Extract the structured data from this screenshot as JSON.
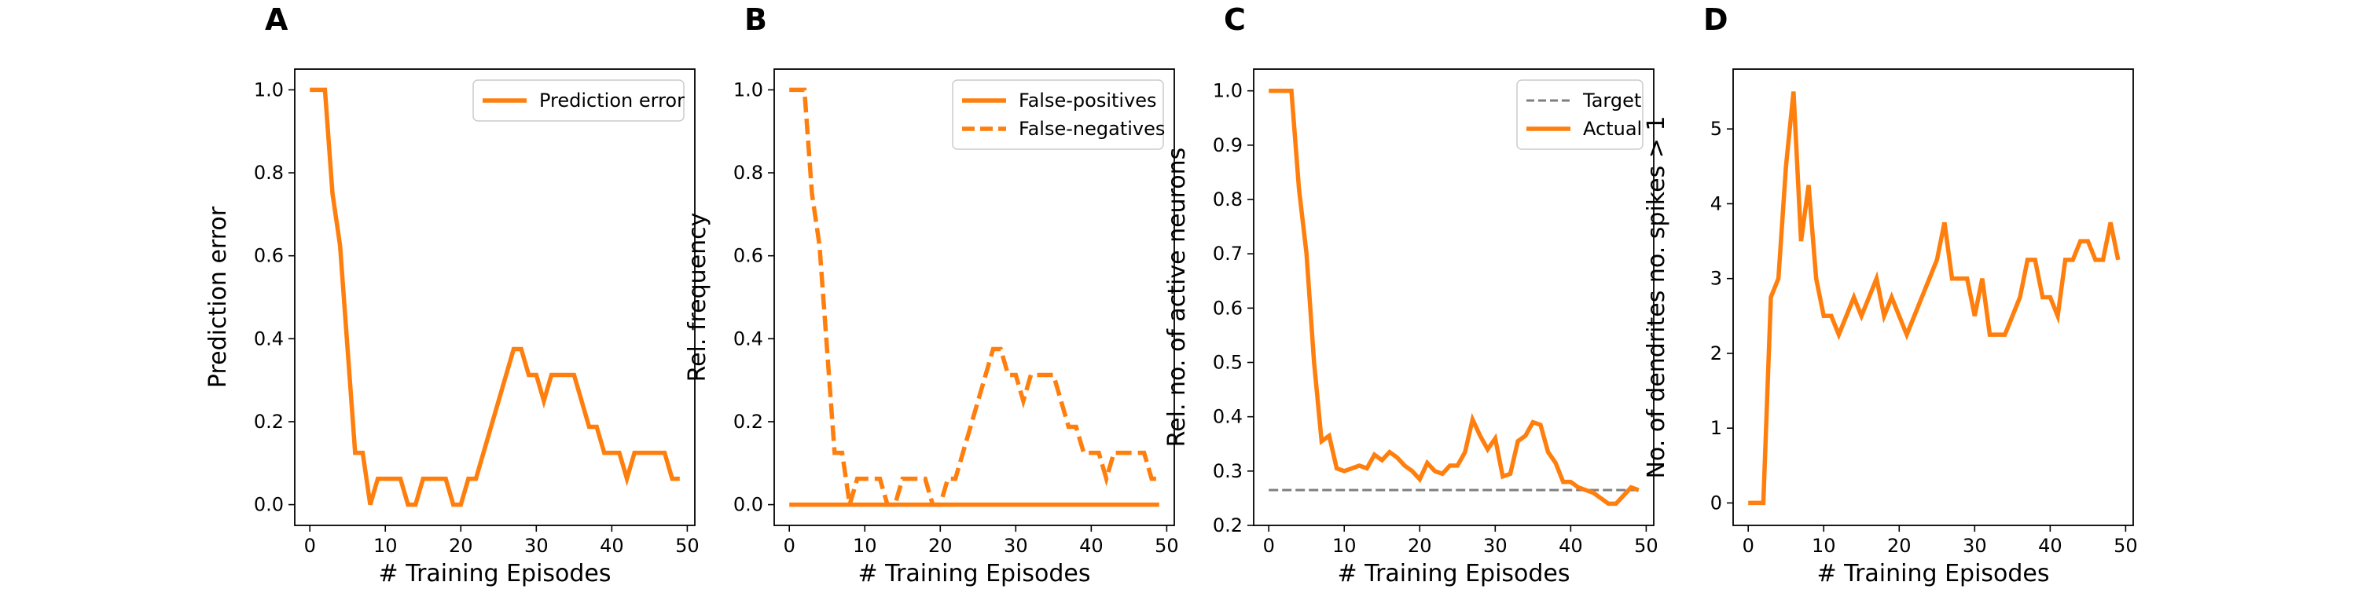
{
  "colors": {
    "series": "#ff7f0e",
    "target": "#7f7f7f",
    "axes": "#000000"
  },
  "chart_data": [
    {
      "panel": "A",
      "type": "line",
      "xlabel": "# Training Episodes",
      "ylabel": "Prediction error",
      "xlim": [
        -2,
        51
      ],
      "ylim": [
        -0.05,
        1.05
      ],
      "xticks": [
        0,
        10,
        20,
        30,
        40,
        50
      ],
      "yticks": [
        0.0,
        0.2,
        0.4,
        0.6,
        0.8,
        1.0
      ],
      "ytick_labels": [
        "0.0",
        "0.2",
        "0.4",
        "0.6",
        "0.8",
        "1.0"
      ],
      "legend": "top-right",
      "series": [
        {
          "name": "Prediction error",
          "style": "solid",
          "color": "#ff7f0e",
          "x": [
            0,
            1,
            2,
            3,
            4,
            5,
            6,
            7,
            8,
            9,
            10,
            11,
            12,
            13,
            14,
            15,
            16,
            17,
            18,
            19,
            20,
            21,
            22,
            23,
            24,
            25,
            26,
            27,
            28,
            29,
            30,
            31,
            32,
            33,
            34,
            35,
            36,
            37,
            38,
            39,
            40,
            41,
            42,
            43,
            44,
            45,
            46,
            47,
            48,
            49
          ],
          "y": [
            1.0,
            1.0,
            1.0,
            0.75,
            0.625,
            0.375,
            0.125,
            0.125,
            0.0,
            0.0625,
            0.0625,
            0.0625,
            0.0625,
            0.0,
            0.0,
            0.0625,
            0.0625,
            0.0625,
            0.0625,
            0.0,
            0.0,
            0.0625,
            0.0625,
            0.125,
            0.1875,
            0.25,
            0.3125,
            0.375,
            0.375,
            0.3125,
            0.3125,
            0.25,
            0.3125,
            0.3125,
            0.3125,
            0.3125,
            0.25,
            0.1875,
            0.1875,
            0.125,
            0.125,
            0.125,
            0.0625,
            0.125,
            0.125,
            0.125,
            0.125,
            0.125,
            0.0625,
            0.0625
          ]
        }
      ]
    },
    {
      "panel": "B",
      "type": "line",
      "xlabel": "# Training Episodes",
      "ylabel": "Rel. frequency",
      "xlim": [
        -2,
        51
      ],
      "ylim": [
        -0.05,
        1.05
      ],
      "xticks": [
        0,
        10,
        20,
        30,
        40,
        50
      ],
      "yticks": [
        0.0,
        0.2,
        0.4,
        0.6,
        0.8,
        1.0
      ],
      "ytick_labels": [
        "0.0",
        "0.2",
        "0.4",
        "0.6",
        "0.8",
        "1.0"
      ],
      "legend": "top-right",
      "series": [
        {
          "name": "False-positives",
          "style": "solid",
          "color": "#ff7f0e",
          "x": [
            0,
            49
          ],
          "y": [
            0.0,
            0.0
          ]
        },
        {
          "name": "False-negatives",
          "style": "dashed",
          "color": "#ff7f0e",
          "x": [
            0,
            1,
            2,
            3,
            4,
            5,
            6,
            7,
            8,
            9,
            10,
            11,
            12,
            13,
            14,
            15,
            16,
            17,
            18,
            19,
            20,
            21,
            22,
            23,
            24,
            25,
            26,
            27,
            28,
            29,
            30,
            31,
            32,
            33,
            34,
            35,
            36,
            37,
            38,
            39,
            40,
            41,
            42,
            43,
            44,
            45,
            46,
            47,
            48,
            49
          ],
          "y": [
            1.0,
            1.0,
            1.0,
            0.75,
            0.625,
            0.375,
            0.125,
            0.125,
            0.0,
            0.0625,
            0.0625,
            0.0625,
            0.0625,
            0.0,
            0.0,
            0.0625,
            0.0625,
            0.0625,
            0.0625,
            0.0,
            0.0,
            0.0625,
            0.0625,
            0.125,
            0.1875,
            0.25,
            0.3125,
            0.375,
            0.375,
            0.3125,
            0.3125,
            0.25,
            0.3125,
            0.3125,
            0.3125,
            0.3125,
            0.25,
            0.1875,
            0.1875,
            0.125,
            0.125,
            0.125,
            0.0625,
            0.125,
            0.125,
            0.125,
            0.125,
            0.125,
            0.0625,
            0.0625
          ]
        }
      ]
    },
    {
      "panel": "C",
      "type": "line",
      "xlabel": "# Training Episodes",
      "ylabel": "Rel. no. of active neurons",
      "xlim": [
        -2,
        51
      ],
      "ylim": [
        0.2,
        1.04
      ],
      "xticks": [
        0,
        10,
        20,
        30,
        40,
        50
      ],
      "yticks": [
        0.2,
        0.3,
        0.4,
        0.5,
        0.6,
        0.7,
        0.8,
        0.9,
        1.0
      ],
      "ytick_labels": [
        "0.2",
        "0.3",
        "0.4",
        "0.5",
        "0.6",
        "0.7",
        "0.8",
        "0.9",
        "1.0"
      ],
      "legend": "top-right",
      "series": [
        {
          "name": "Target",
          "style": "dashed",
          "color": "#7f7f7f",
          "x": [
            0,
            49
          ],
          "y": [
            0.265,
            0.265
          ]
        },
        {
          "name": "Actual",
          "style": "solid",
          "color": "#ff7f0e",
          "x": [
            0,
            1,
            2,
            3,
            4,
            5,
            6,
            7,
            8,
            9,
            10,
            11,
            12,
            13,
            14,
            15,
            16,
            17,
            18,
            19,
            20,
            21,
            22,
            23,
            24,
            25,
            26,
            27,
            28,
            29,
            30,
            31,
            32,
            33,
            34,
            35,
            36,
            37,
            38,
            39,
            40,
            41,
            42,
            43,
            44,
            45,
            46,
            47,
            48,
            49
          ],
          "y": [
            1.0,
            1.0,
            1.0,
            1.0,
            0.82,
            0.7,
            0.5,
            0.355,
            0.365,
            0.305,
            0.3,
            0.305,
            0.31,
            0.305,
            0.33,
            0.32,
            0.335,
            0.325,
            0.31,
            0.3,
            0.285,
            0.315,
            0.3,
            0.295,
            0.31,
            0.31,
            0.335,
            0.395,
            0.365,
            0.34,
            0.36,
            0.29,
            0.295,
            0.355,
            0.365,
            0.39,
            0.385,
            0.335,
            0.315,
            0.28,
            0.28,
            0.27,
            0.265,
            0.26,
            0.25,
            0.24,
            0.24,
            0.255,
            0.27,
            0.265
          ]
        }
      ]
    },
    {
      "panel": "D",
      "type": "line",
      "xlabel": "# Training Episodes",
      "ylabel": "No. of dendrites no. spikes > 1",
      "xlim": [
        -2,
        51
      ],
      "ylim": [
        -0.3,
        5.8
      ],
      "xticks": [
        0,
        10,
        20,
        30,
        40,
        50
      ],
      "yticks": [
        0,
        1,
        2,
        3,
        4,
        5
      ],
      "ytick_labels": [
        "0",
        "1",
        "2",
        "3",
        "4",
        "5"
      ],
      "legend": "none",
      "series": [
        {
          "name": "",
          "style": "solid",
          "color": "#ff7f0e",
          "x": [
            0,
            1,
            2,
            3,
            4,
            5,
            6,
            7,
            8,
            9,
            10,
            11,
            12,
            13,
            14,
            15,
            16,
            17,
            18,
            19,
            20,
            21,
            22,
            23,
            24,
            25,
            26,
            27,
            28,
            29,
            30,
            31,
            32,
            33,
            34,
            35,
            36,
            37,
            38,
            39,
            40,
            41,
            42,
            43,
            44,
            45,
            46,
            47,
            48,
            49
          ],
          "y": [
            0.0,
            0.0,
            0.0,
            2.75,
            3.0,
            4.5,
            5.5,
            3.5,
            4.25,
            3.0,
            2.5,
            2.5,
            2.25,
            2.5,
            2.75,
            2.5,
            2.75,
            3.0,
            2.5,
            2.75,
            2.5,
            2.25,
            2.5,
            2.75,
            3.0,
            3.25,
            3.75,
            3.0,
            3.0,
            3.0,
            2.5,
            3.0,
            2.25,
            2.25,
            2.25,
            2.5,
            2.75,
            3.25,
            3.25,
            2.75,
            2.75,
            2.5,
            3.25,
            3.25,
            3.5,
            3.5,
            3.25,
            3.25,
            3.75,
            3.25
          ]
        }
      ]
    }
  ]
}
